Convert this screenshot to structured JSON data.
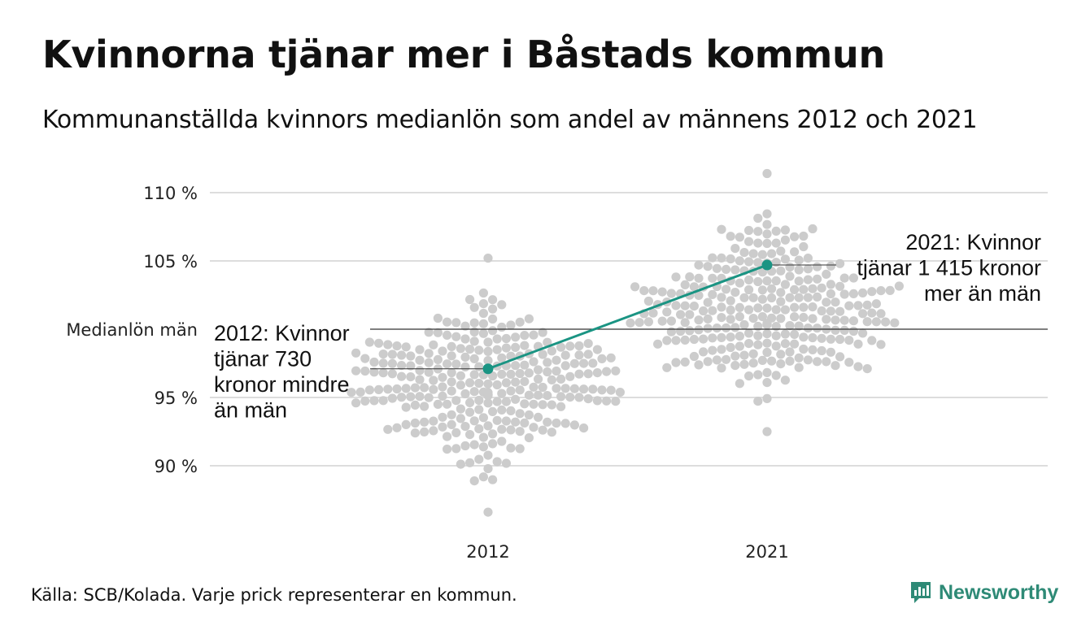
{
  "header": {
    "title": "Kvinnorna tjänar mer i Båstads kommun",
    "subtitle": "Kommunanställda kvinnors medianlön som andel av männens 2012 och 2021"
  },
  "footer": {
    "source": "Källa: SCB/Kolada. Varje prick representerar en kommun.",
    "brand": "Newsworthy"
  },
  "colors": {
    "highlight": "#1a9483",
    "dots": "#cccccc",
    "grid": "#dddddd",
    "reference": "#333333",
    "brand": "#2e8a76"
  },
  "icons": {
    "brand": "newsworthy-chart-icon"
  },
  "chart_data": {
    "type": "scatter",
    "categories": [
      "2012",
      "2021"
    ],
    "y_ticks": [
      90,
      95,
      105,
      110
    ],
    "y_tick_labels": [
      "90 %",
      "95 %",
      "105 %",
      "110 %"
    ],
    "ylim": [
      86,
      111.5
    ],
    "reference_line": {
      "value": 100,
      "label": "Medianlön män"
    },
    "highlight": {
      "values": [
        97.1,
        104.7
      ],
      "annotations": [
        {
          "lines": [
            "2012: Kvinnor",
            "tjänar 730",
            "kronor mindre",
            "än män"
          ]
        },
        {
          "lines": [
            "2021: Kvinnor",
            "tjänar 1 415 kronor",
            "mer än män"
          ]
        }
      ]
    },
    "distribution": [
      {
        "category": "2012",
        "min": 86.6,
        "max": 105.2,
        "count": 290,
        "center": 96
      },
      {
        "category": "2021",
        "min": 92.5,
        "max": 111.4,
        "count": 290,
        "center": 101.5
      }
    ]
  }
}
